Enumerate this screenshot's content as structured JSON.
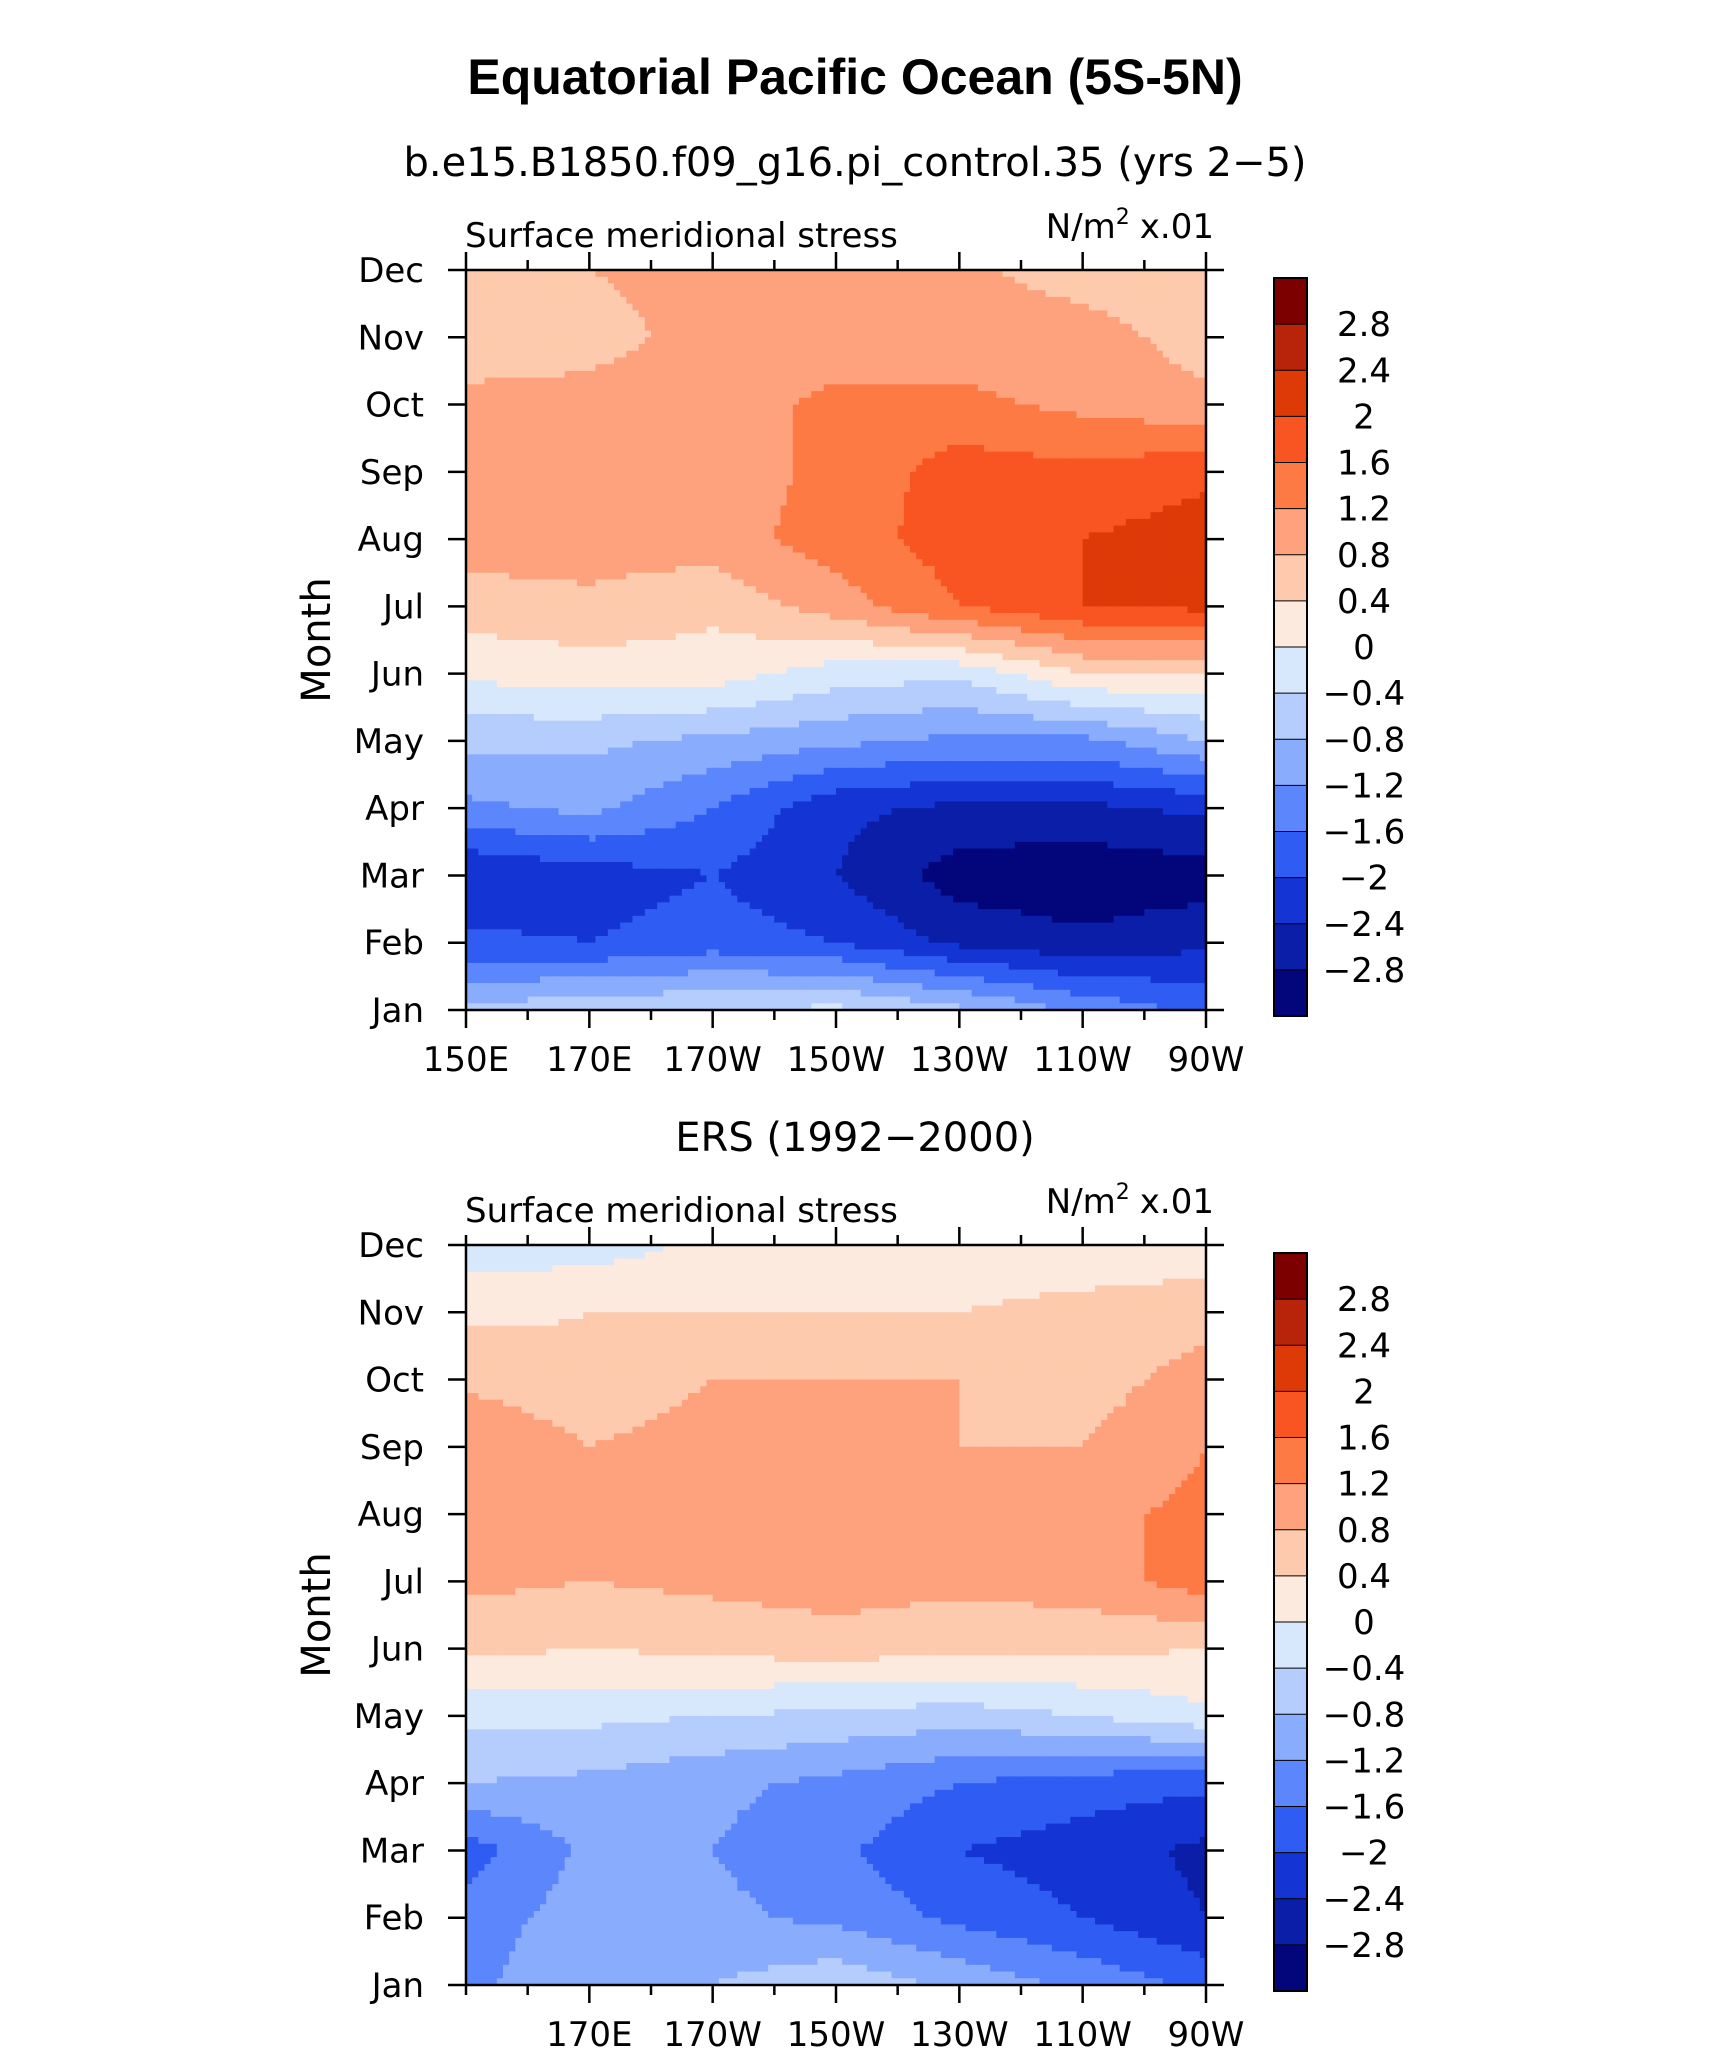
{
  "figure": {
    "title": "Equatorial Pacific Ocean (5S-5N)"
  },
  "colorbar": {
    "labels": [
      "2.8",
      "2.4",
      "2",
      "1.6",
      "1.2",
      "0.8",
      "0.4",
      "0",
      "−0.4",
      "−0.8",
      "−1.2",
      "−1.6",
      "−2",
      "−2.4",
      "−2.8"
    ],
    "colors": [
      "#7d0000",
      "#b8240a",
      "#dd3a08",
      "#f85522",
      "#fd7a45",
      "#fda27d",
      "#fdcaad",
      "#fdeade",
      "#d7e8fc",
      "#b4cdfd",
      "#8aacfd",
      "#5c86fb",
      "#2f5df3",
      "#1435d4",
      "#0a1ea8",
      "#03067b"
    ]
  },
  "chart_data": [
    {
      "type": "heatmap",
      "title": "b.e15.B1850.f09_g16.pi_control.35 (yrs 2−5)",
      "left_label": "Surface meridional stress",
      "units_label": "N/m",
      "units_sup": "2",
      "units_scale": "x.01",
      "ylabel": "Month",
      "y_ticks": [
        "Jan",
        "Feb",
        "Mar",
        "Apr",
        "May",
        "Jun",
        "Jul",
        "Aug",
        "Sep",
        "Oct",
        "Nov",
        "Dec"
      ],
      "x_ticks": [
        "150E",
        "170E",
        "170W",
        "150W",
        "130W",
        "110W",
        "90W"
      ],
      "x_range": [
        150,
        270
      ],
      "levels": [
        -2.8,
        -2.4,
        -2.0,
        -1.6,
        -1.2,
        -0.8,
        -0.4,
        0,
        0.4,
        0.8,
        1.2,
        1.6,
        2.0,
        2.4,
        2.8
      ],
      "lon": [
        150,
        170,
        190,
        210,
        230,
        250,
        270
      ],
      "values": [
        [
          -0.7,
          -0.5,
          -0.4,
          -0.3,
          -0.7,
          -1.3,
          -1.7
        ],
        [
          -1.9,
          -2.0,
          -1.8,
          -2.0,
          -2.5,
          -2.7,
          -2.5
        ],
        [
          -2.4,
          -2.2,
          -2.0,
          -2.4,
          -3.0,
          -3.1,
          -3.0
        ],
        [
          -1.3,
          -1.1,
          -1.6,
          -2.3,
          -2.5,
          -2.5,
          -2.3
        ],
        [
          -0.7,
          -0.7,
          -0.9,
          -1.1,
          -1.3,
          -1.3,
          -0.8
        ],
        [
          0.1,
          0.2,
          0.2,
          -0.2,
          -0.3,
          0.4,
          0.4
        ],
        [
          0.6,
          0.7,
          0.5,
          1.0,
          1.6,
          2.0,
          2.1
        ],
        [
          1.0,
          1.0,
          1.0,
          1.4,
          1.8,
          2.0,
          2.2
        ],
        [
          1.0,
          0.9,
          1.0,
          1.3,
          1.8,
          1.7,
          1.9
        ],
        [
          0.9,
          0.9,
          1.0,
          1.3,
          1.3,
          1.1,
          0.9
        ],
        [
          0.6,
          0.7,
          0.9,
          1.0,
          1.0,
          1.0,
          0.6
        ],
        [
          0.5,
          0.8,
          0.9,
          1.0,
          0.9,
          0.6,
          0.4
        ]
      ]
    },
    {
      "type": "heatmap",
      "title": "ERS (1992−2000)",
      "left_label": "Surface meridional stress",
      "units_label": "N/m",
      "units_sup": "2",
      "units_scale": "x.01",
      "ylabel": "Month",
      "y_ticks": [
        "Jan",
        "Feb",
        "Mar",
        "Apr",
        "May",
        "Jun",
        "Jul",
        "Aug",
        "Sep",
        "Oct",
        "Nov",
        "Dec"
      ],
      "x_ticks": [
        "170E",
        "170W",
        "150W",
        "130W",
        "110W",
        "90W"
      ],
      "x_range": [
        150,
        270
      ],
      "levels": [
        -2.8,
        -2.4,
        -2.0,
        -1.6,
        -1.2,
        -0.8,
        -0.4,
        0,
        0.4,
        0.8,
        1.2,
        1.6,
        2.0,
        2.4,
        2.8
      ],
      "lon": [
        150,
        170,
        190,
        210,
        230,
        250,
        270
      ],
      "values": [
        [
          -1.3,
          -0.9,
          -0.8,
          -0.5,
          -0.9,
          -1.3,
          -1.7
        ],
        [
          -1.4,
          -1.0,
          -1.1,
          -1.3,
          -1.7,
          -2.0,
          -2.4
        ],
        [
          -1.8,
          -1.1,
          -1.2,
          -1.5,
          -2.0,
          -2.2,
          -2.5
        ],
        [
          -0.8,
          -0.9,
          -1.1,
          -1.3,
          -1.6,
          -1.8,
          -1.9
        ],
        [
          -0.3,
          -0.3,
          -0.4,
          -0.5,
          -0.6,
          -0.4,
          -0.1
        ],
        [
          0.5,
          0.4,
          0.5,
          0.6,
          0.5,
          0.5,
          0.4
        ],
        [
          0.9,
          0.8,
          0.9,
          1.0,
          0.9,
          1.0,
          1.4
        ],
        [
          0.9,
          0.9,
          1.0,
          0.9,
          1.0,
          1.1,
          1.3
        ],
        [
          1.2,
          0.8,
          1.0,
          0.9,
          0.8,
          0.8,
          1.2
        ],
        [
          0.7,
          0.5,
          0.8,
          0.8,
          0.8,
          0.6,
          1.0
        ],
        [
          0.3,
          0.4,
          0.4,
          0.4,
          0.4,
          0.5,
          0.6
        ],
        [
          -0.2,
          -0.2,
          0.1,
          0.2,
          0.2,
          0.2,
          0.2
        ]
      ]
    }
  ]
}
